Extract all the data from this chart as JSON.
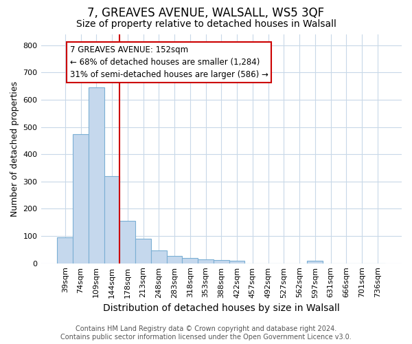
{
  "title": "7, GREAVES AVENUE, WALSALL, WS5 3QF",
  "subtitle": "Size of property relative to detached houses in Walsall",
  "xlabel": "Distribution of detached houses by size in Walsall",
  "ylabel": "Number of detached properties",
  "categories": [
    "39sqm",
    "74sqm",
    "109sqm",
    "144sqm",
    "178sqm",
    "213sqm",
    "248sqm",
    "283sqm",
    "318sqm",
    "353sqm",
    "388sqm",
    "422sqm",
    "457sqm",
    "492sqm",
    "527sqm",
    "562sqm",
    "597sqm",
    "631sqm",
    "666sqm",
    "701sqm",
    "736sqm"
  ],
  "values": [
    95,
    473,
    645,
    320,
    155,
    90,
    46,
    27,
    20,
    15,
    12,
    10,
    0,
    0,
    0,
    0,
    10,
    0,
    0,
    0,
    0
  ],
  "bar_color": "#c5d8ed",
  "bar_edgecolor": "#7bafd4",
  "vline_color": "#cc0000",
  "vline_x": 3.5,
  "ylim": [
    0,
    840
  ],
  "yticks": [
    0,
    100,
    200,
    300,
    400,
    500,
    600,
    700,
    800
  ],
  "annotation_text": "7 GREAVES AVENUE: 152sqm\n← 68% of detached houses are smaller (1,284)\n31% of semi-detached houses are larger (586) →",
  "annotation_box_facecolor": "#ffffff",
  "annotation_box_edgecolor": "#cc0000",
  "footer_line1": "Contains HM Land Registry data © Crown copyright and database right 2024.",
  "footer_line2": "Contains public sector information licensed under the Open Government Licence v3.0.",
  "bg_color": "#ffffff",
  "plot_bg_color": "#ffffff",
  "grid_color": "#c8d8e8",
  "title_fontsize": 12,
  "subtitle_fontsize": 10,
  "tick_fontsize": 8,
  "ylabel_fontsize": 9,
  "xlabel_fontsize": 10,
  "annotation_fontsize": 8.5,
  "footer_fontsize": 7
}
